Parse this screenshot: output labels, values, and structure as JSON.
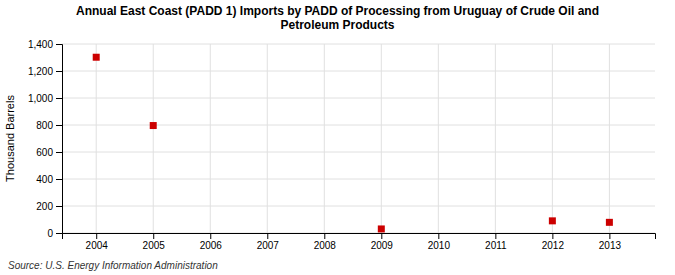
{
  "chart_data": {
    "type": "scatter",
    "title": "Annual East Coast (PADD 1) Imports by PADD of Processing from Uruguay of Crude Oil and\nPetroleum Products",
    "y_label": "Thousand Barrels",
    "source": "Source: U.S. Energy Information Administration",
    "x": [
      2004,
      2005,
      2009,
      2012,
      2013
    ],
    "values": [
      1302,
      796,
      30,
      90,
      79
    ],
    "color": "#cc0000",
    "marker": "square",
    "xlim": [
      2003.4,
      2013.8
    ],
    "xticks": [
      2004,
      2005,
      2006,
      2007,
      2008,
      2009,
      2010,
      2011,
      2012,
      2013
    ],
    "ylim": [
      0,
      1400
    ],
    "yticks": [
      0,
      200,
      400,
      600,
      800,
      {
        "value": 1000,
        "label": "1,000"
      },
      {
        "value": 1200,
        "label": "1,200"
      },
      {
        "value": 1400,
        "label": "1,400"
      }
    ],
    "grid": true
  }
}
